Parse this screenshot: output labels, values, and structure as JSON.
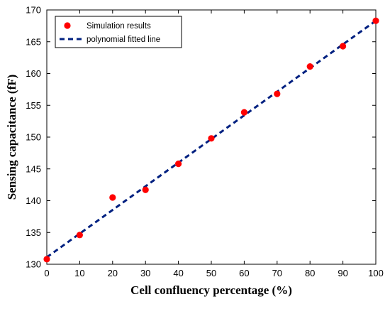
{
  "chart_data": {
    "type": "scatter",
    "title": "",
    "xlabel": "Cell confluency percentage (%)",
    "ylabel": "Sensing capacitance (fF)",
    "xlim": [
      0,
      100
    ],
    "ylim": [
      130,
      170
    ],
    "xticks": [
      0,
      10,
      20,
      30,
      40,
      50,
      60,
      70,
      80,
      90,
      100
    ],
    "yticks": [
      130,
      135,
      140,
      145,
      150,
      155,
      160,
      165,
      170
    ],
    "grid": false,
    "legend_position": "top-left",
    "series": [
      {
        "name": "Simulation results",
        "kind": "markers",
        "color": "#ff0000",
        "x": [
          0,
          10,
          20,
          30,
          40,
          50,
          60,
          70,
          80,
          90,
          100
        ],
        "y": [
          130.8,
          134.6,
          140.5,
          141.7,
          145.8,
          149.8,
          153.9,
          156.8,
          161.1,
          164.3,
          168.3
        ]
      },
      {
        "name": "polynomial fitted line",
        "kind": "dashed-line",
        "color": "#002080",
        "x": [
          0,
          100
        ],
        "y": [
          131.1,
          168.3
        ]
      }
    ]
  }
}
